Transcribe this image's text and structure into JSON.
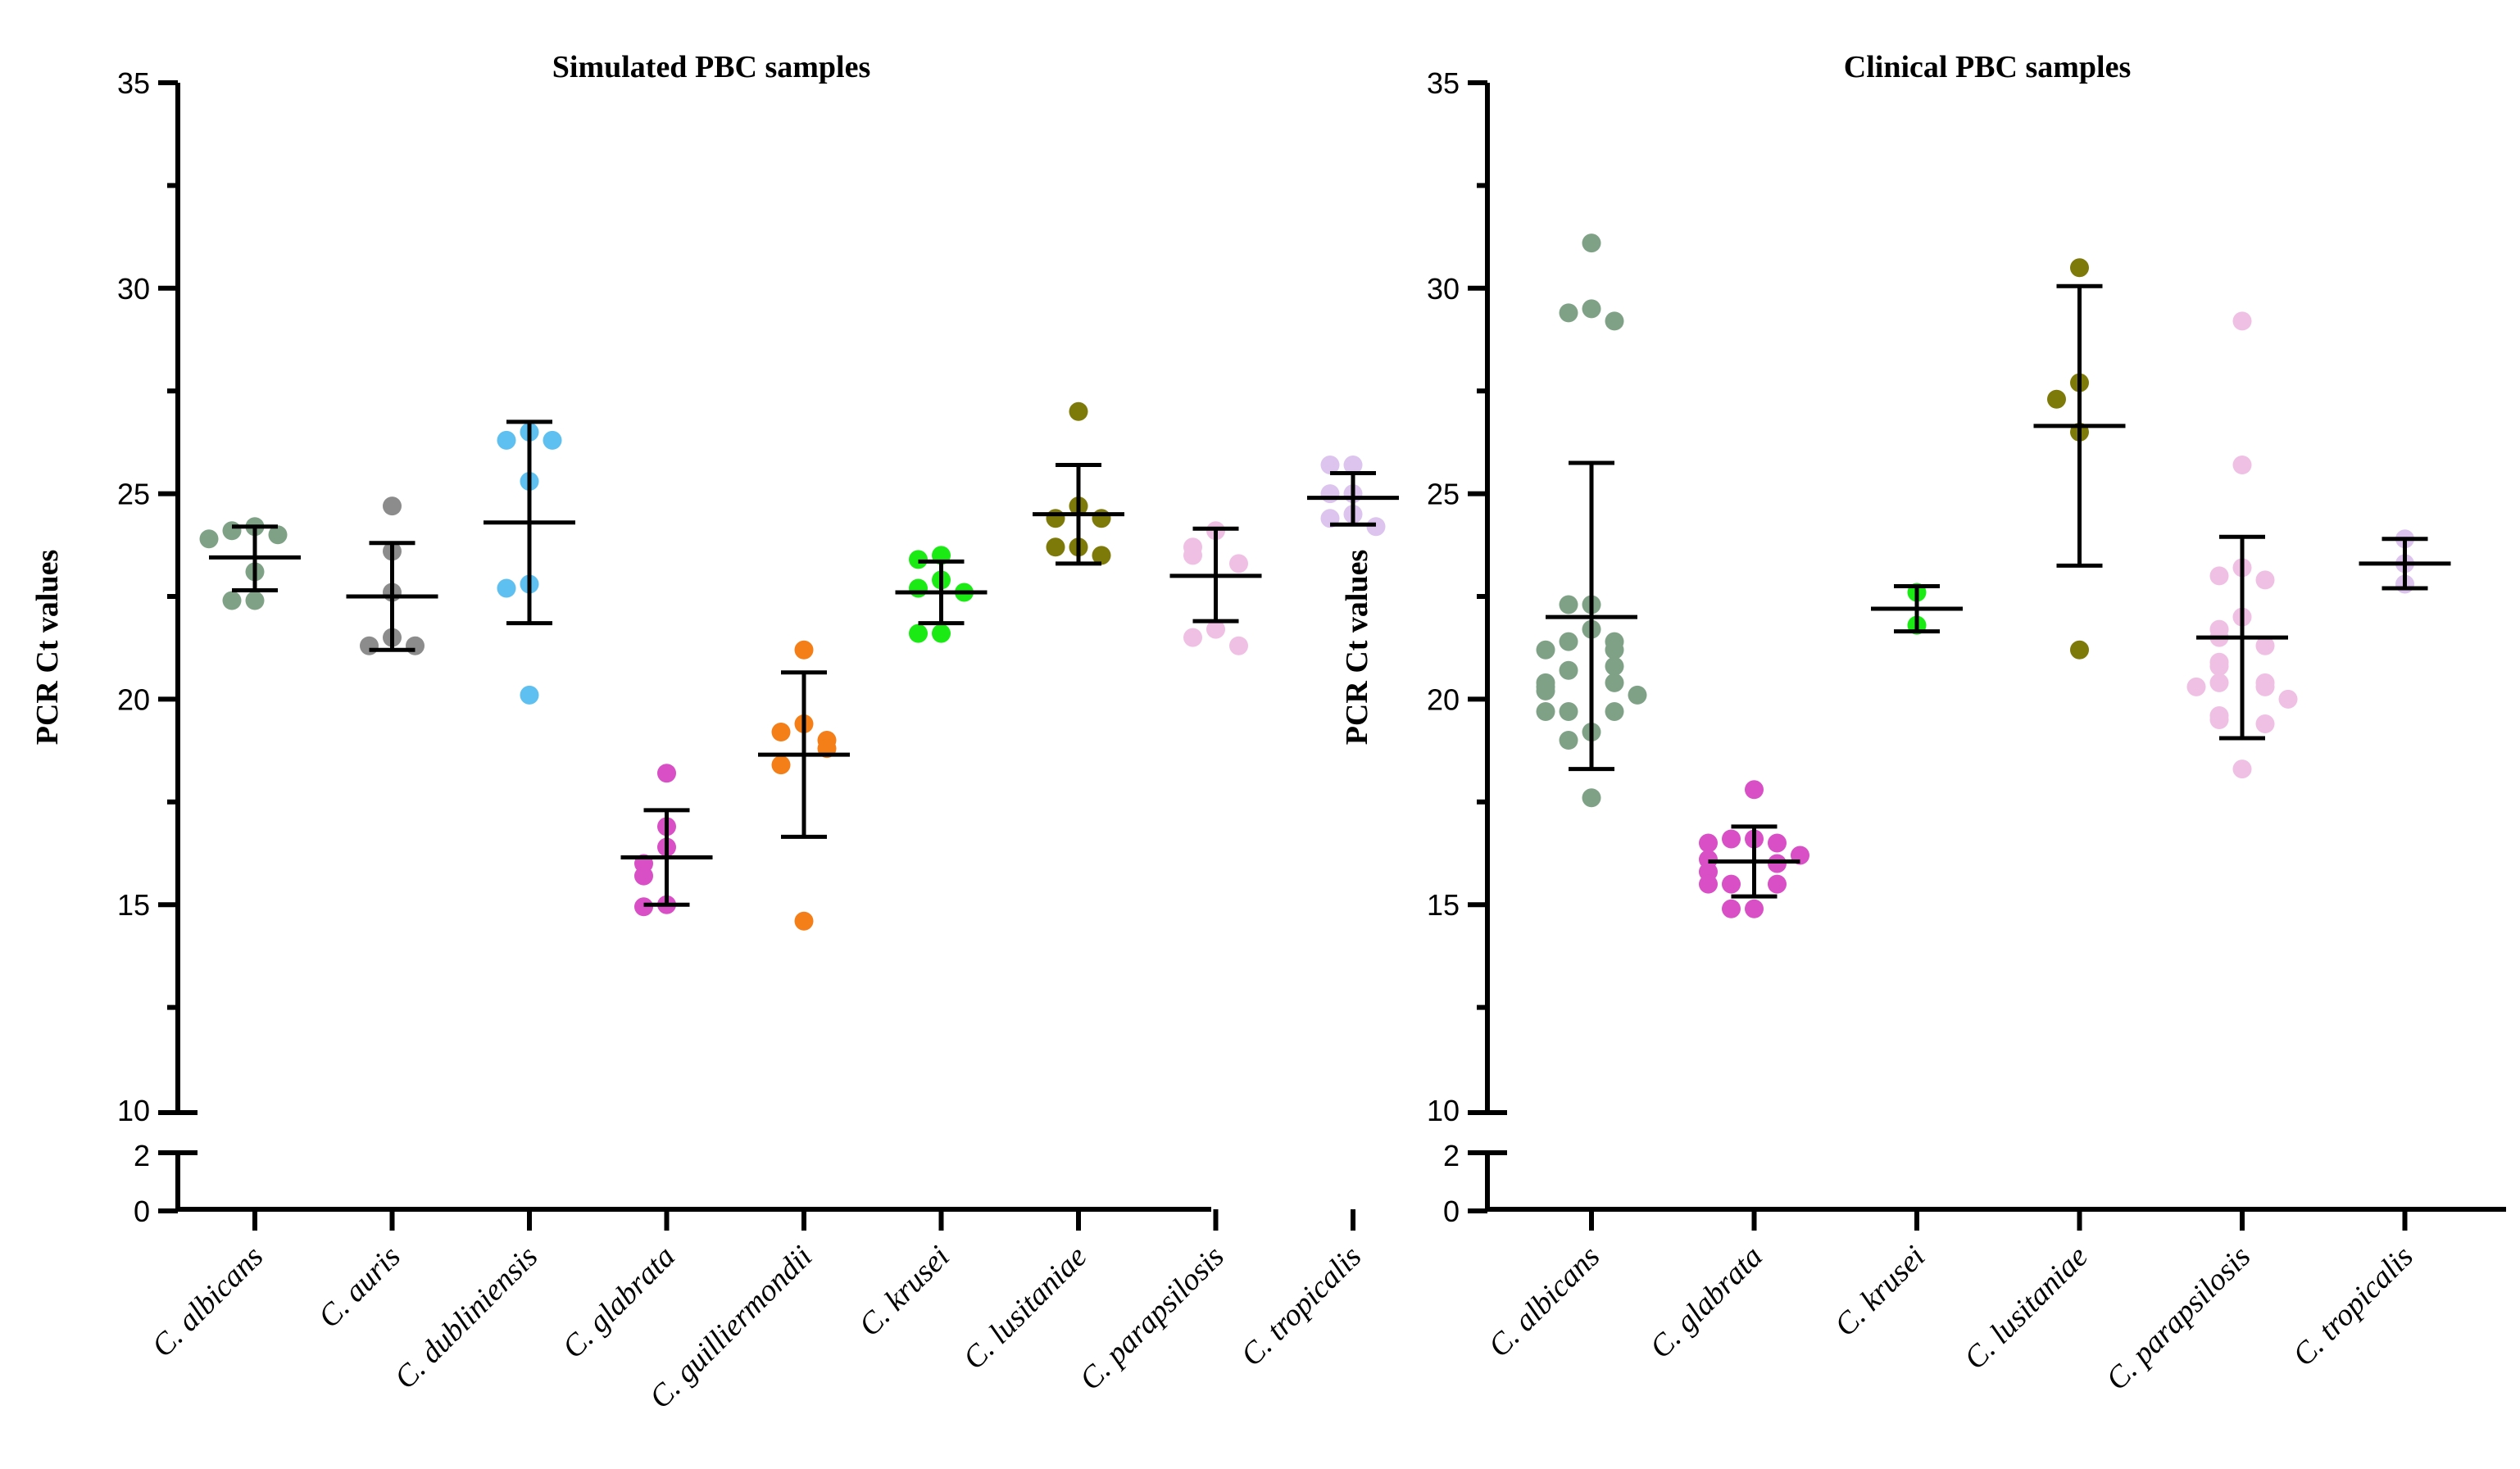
{
  "chart_data": [
    {
      "type": "scatter",
      "title": "Simulated PBC samples",
      "xlabel": "",
      "ylabel": "PCR Ct values",
      "ylim": [
        0,
        35
      ],
      "y_axis_break": [
        2,
        10
      ],
      "yticks": [
        "0",
        "2",
        "10",
        "15",
        "20",
        "25",
        "30",
        "35"
      ],
      "categories": [
        "C. albicans",
        "C. auris",
        "C. dubliniensis",
        "C. glabrata",
        "C. guilliermondii",
        "C. krusei",
        "C. lusitaniae",
        "C. parapsilosis",
        "C. tropicalis"
      ],
      "colors": [
        "#7fa287",
        "#8c8c8c",
        "#5ec0f0",
        "#d94fc6",
        "#f47e17",
        "#1bea15",
        "#7d7a0a",
        "#f0c0e4",
        "#dcc4ee"
      ],
      "series": [
        {
          "name": "C. albicans",
          "values": [
            24.2,
            23.9,
            24.1,
            24.0,
            23.1,
            22.4,
            22.4
          ],
          "mean": 23.45,
          "sd_low": 22.65,
          "sd_high": 24.2
        },
        {
          "name": "C. auris",
          "values": [
            24.7,
            23.6,
            22.6,
            21.5,
            21.3,
            21.3
          ],
          "mean": 22.5,
          "sd_low": 21.2,
          "sd_high": 23.8
        },
        {
          "name": "C. dubliniensis",
          "values": [
            26.3,
            26.5,
            26.3,
            25.3,
            22.8,
            22.7,
            20.1
          ],
          "mean": 24.3,
          "sd_low": 21.85,
          "sd_high": 26.75
        },
        {
          "name": "C. glabrata",
          "values": [
            18.2,
            16.9,
            16.4,
            16.0,
            15.7,
            15.0,
            14.95
          ],
          "mean": 16.15,
          "sd_low": 15.0,
          "sd_high": 17.3
        },
        {
          "name": "C. guilliermondii",
          "values": [
            21.2,
            19.4,
            19.2,
            19.0,
            18.8,
            18.4,
            14.6
          ],
          "mean": 18.65,
          "sd_low": 16.65,
          "sd_high": 20.65
        },
        {
          "name": "C. krusei",
          "values": [
            23.5,
            23.4,
            22.9,
            22.7,
            22.6,
            21.6,
            21.6
          ],
          "mean": 22.6,
          "sd_low": 21.85,
          "sd_high": 23.35
        },
        {
          "name": "C. lusitaniae",
          "values": [
            27.0,
            24.7,
            24.4,
            24.4,
            23.7,
            23.7,
            23.5
          ],
          "mean": 24.5,
          "sd_low": 23.3,
          "sd_high": 25.7
        },
        {
          "name": "C. parapsilosis",
          "values": [
            24.1,
            23.7,
            23.5,
            23.3,
            21.7,
            21.5,
            21.3
          ],
          "mean": 23.0,
          "sd_low": 21.9,
          "sd_high": 24.15
        },
        {
          "name": "C. tropicalis",
          "values": [
            25.7,
            25.7,
            25.0,
            25.0,
            24.5,
            24.4,
            24.2
          ],
          "mean": 24.9,
          "sd_low": 24.25,
          "sd_high": 25.5
        }
      ]
    },
    {
      "type": "scatter",
      "title": "Clinical PBC samples",
      "xlabel": "",
      "ylabel": "PCR Ct values",
      "ylim": [
        0,
        35
      ],
      "y_axis_break": [
        2,
        10
      ],
      "yticks": [
        "0",
        "2",
        "10",
        "15",
        "20",
        "25",
        "30",
        "35"
      ],
      "categories": [
        "C. albicans",
        "C. glabrata",
        "C. krusei",
        "C. lusitaniae",
        "C. parapsilosis",
        "C. tropicalis"
      ],
      "colors": [
        "#7fa287",
        "#d94fc6",
        "#1bea15",
        "#7d7a0a",
        "#f0c0e4",
        "#dcc4ee"
      ],
      "series": [
        {
          "name": "C. albicans",
          "values": [
            31.1,
            29.5,
            29.4,
            29.2,
            22.3,
            22.3,
            21.7,
            21.4,
            21.4,
            21.2,
            21.2,
            20.8,
            20.7,
            20.4,
            20.4,
            20.3,
            20.2,
            20.1,
            19.7,
            19.7,
            19.7,
            19.2,
            19.0,
            17.6
          ],
          "mean": 22.0,
          "sd_low": 18.3,
          "sd_high": 25.75
        },
        {
          "name": "C. glabrata",
          "values": [
            17.8,
            16.6,
            16.6,
            16.5,
            16.5,
            16.2,
            16.1,
            16.0,
            15.8,
            15.5,
            15.5,
            15.5,
            14.9,
            14.9
          ],
          "mean": 16.05,
          "sd_low": 15.2,
          "sd_high": 16.9
        },
        {
          "name": "C. krusei",
          "values": [
            22.6,
            21.8
          ],
          "mean": 22.2,
          "sd_low": 21.65,
          "sd_high": 22.75
        },
        {
          "name": "C. lusitaniae",
          "values": [
            30.5,
            27.7,
            27.3,
            26.5,
            21.2
          ],
          "mean": 26.65,
          "sd_low": 23.25,
          "sd_high": 30.05
        },
        {
          "name": "C. parapsilosis",
          "values": [
            29.2,
            25.7,
            23.2,
            23.0,
            22.9,
            22.0,
            21.7,
            21.5,
            21.3,
            20.9,
            20.8,
            20.4,
            20.4,
            20.3,
            20.3,
            20.0,
            19.6,
            19.5,
            19.4,
            18.3
          ],
          "mean": 21.5,
          "sd_low": 19.05,
          "sd_high": 23.95
        },
        {
          "name": "C. tropicalis",
          "values": [
            23.9,
            23.3,
            22.8
          ],
          "mean": 23.3,
          "sd_low": 22.7,
          "sd_high": 23.9
        }
      ]
    }
  ]
}
